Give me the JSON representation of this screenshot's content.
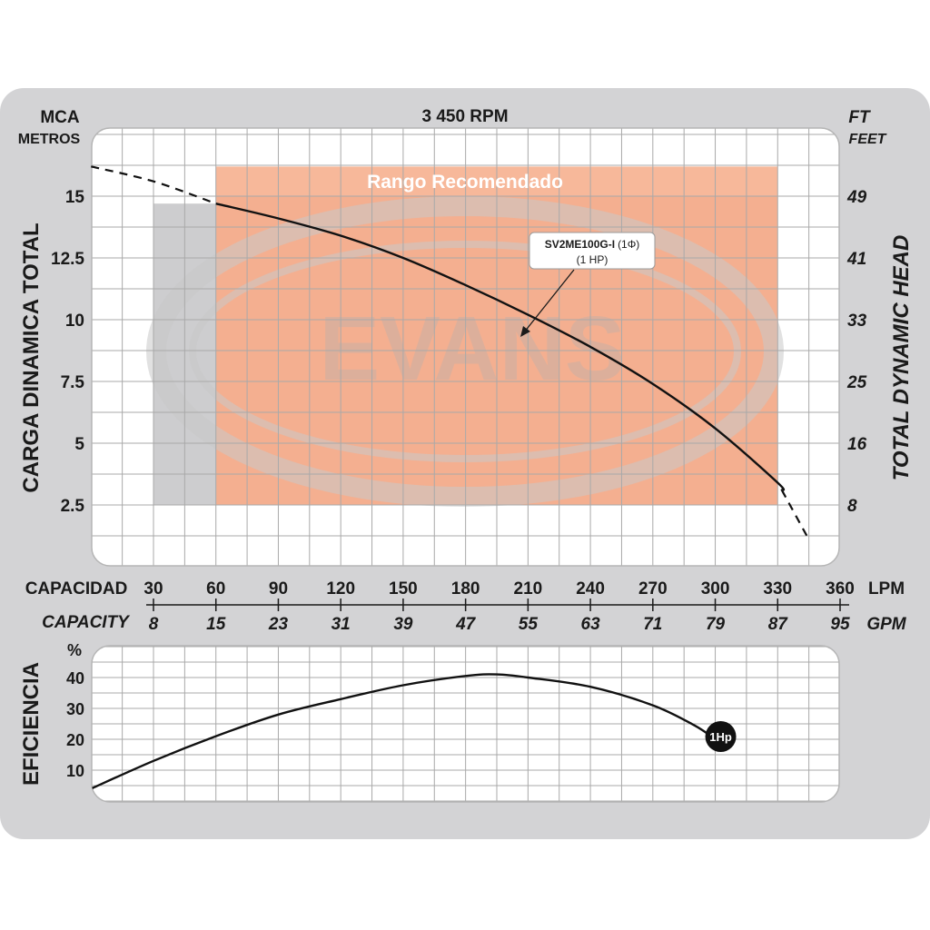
{
  "chart_data": [
    {
      "type": "line",
      "title": "3 450 RPM",
      "left_axis": {
        "label_top": "MCA",
        "label_sub": "METROS",
        "title": "CARGA  DINAMICA  TOTAL",
        "ticks": [
          2.5,
          5,
          7.5,
          10,
          12.5,
          15
        ],
        "ylim": [
          0,
          17.5
        ]
      },
      "right_axis": {
        "label_top": "FT",
        "label_sub": "FEET",
        "title": "TOTAL  DYNAMIC  HEAD",
        "tick_labels": [
          "8",
          "16",
          "25",
          "33",
          "41",
          "49"
        ]
      },
      "x_axis": {
        "label_lpm": "CAPACIDAD",
        "unit_lpm": "LPM",
        "ticks_lpm": [
          30,
          60,
          90,
          120,
          150,
          180,
          210,
          240,
          270,
          300,
          330,
          360
        ],
        "label_gpm": "CAPACITY",
        "unit_gpm": "GPM",
        "ticks_gpm": [
          "8",
          "15",
          "23",
          "31",
          "39",
          "47",
          "55",
          "63",
          "71",
          "79",
          "87",
          "95"
        ],
        "xlim": [
          0,
          360
        ]
      },
      "recommended_range": {
        "label": "Rango Recomendado",
        "x": [
          60,
          330
        ],
        "y": [
          2.5,
          16.2
        ]
      },
      "gray_zone": {
        "x": [
          30,
          60
        ],
        "y": [
          2.5,
          14.7
        ]
      },
      "watermark": "EVANS",
      "series": [
        {
          "name": "SV2ME100G-I",
          "phase": "(1Φ)",
          "power": "(1 HP)",
          "solid": [
            [
              60,
              14.7
            ],
            [
              90,
              14.1
            ],
            [
              120,
              13.4
            ],
            [
              150,
              12.5
            ],
            [
              180,
              11.4
            ],
            [
              210,
              10.2
            ],
            [
              240,
              8.9
            ],
            [
              270,
              7.4
            ],
            [
              300,
              5.6
            ],
            [
              330,
              3.4
            ],
            [
              332,
              3.1
            ]
          ],
          "dashed_start": [
            [
              0,
              16.2
            ],
            [
              30,
              15.6
            ],
            [
              60,
              14.7
            ]
          ],
          "dashed_end": [
            [
              332,
              3.1
            ],
            [
              345,
              1.1
            ]
          ]
        }
      ],
      "grid": true
    },
    {
      "type": "line",
      "y_title": "EFICIENCIA",
      "y_unit": "%",
      "ticks": [
        10,
        20,
        30,
        40
      ],
      "ylim": [
        0,
        50
      ],
      "xlim": [
        0,
        360
      ],
      "series": [
        {
          "name": "1Hp",
          "points": [
            [
              0,
              4
            ],
            [
              30,
              13
            ],
            [
              60,
              21
            ],
            [
              90,
              28
            ],
            [
              120,
              33
            ],
            [
              150,
              37.5
            ],
            [
              180,
              40.5
            ],
            [
              195,
              41
            ],
            [
              210,
              40
            ],
            [
              240,
              37
            ],
            [
              270,
              31
            ],
            [
              290,
              24.5
            ],
            [
              300,
              20
            ]
          ]
        }
      ],
      "grid": true
    }
  ],
  "labels": {
    "series_name": "SV2ME100G-I",
    "series_phase": "(1Φ)",
    "series_power": "(1 HP)",
    "end_marker": "1Hp"
  }
}
